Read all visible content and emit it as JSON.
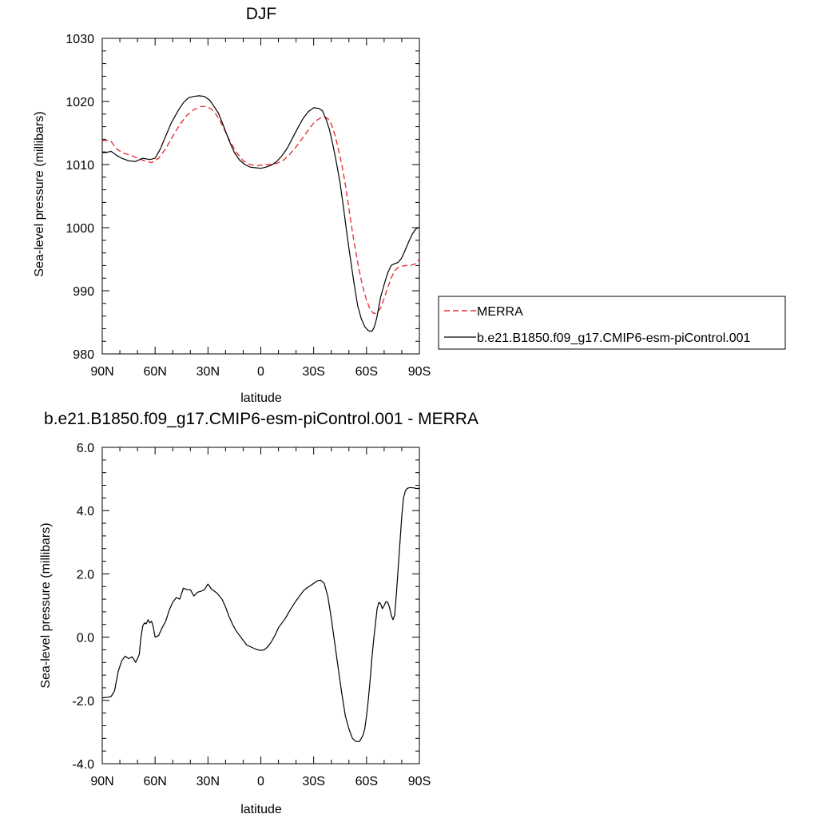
{
  "chart_data": [
    {
      "type": "line",
      "title": "DJF",
      "xlabel": "latitude",
      "ylabel": "Sea-level pressure (millibars)",
      "xlim": [
        90,
        -90
      ],
      "ylim": [
        980,
        1030
      ],
      "xticks": [
        {
          "value": 90,
          "label": "90N"
        },
        {
          "value": 60,
          "label": "60N"
        },
        {
          "value": 30,
          "label": "30N"
        },
        {
          "value": 0,
          "label": "0"
        },
        {
          "value": -30,
          "label": "30S"
        },
        {
          "value": -60,
          "label": "60S"
        },
        {
          "value": -90,
          "label": "90S"
        }
      ],
      "yticks": [
        {
          "value": 980,
          "label": "980"
        },
        {
          "value": 990,
          "label": "990"
        },
        {
          "value": 1000,
          "label": "1000"
        },
        {
          "value": 1010,
          "label": "1010"
        },
        {
          "value": 1020,
          "label": "1020"
        },
        {
          "value": 1030,
          "label": "1030"
        }
      ],
      "legend": {
        "placement": "right"
      },
      "series": [
        {
          "name": "MERRA",
          "color": "#e8333a",
          "dash": true,
          "x": [
            90,
            87,
            85,
            82,
            78,
            74,
            70,
            66,
            62,
            58,
            54,
            50,
            46,
            42,
            38,
            34,
            31,
            28,
            25,
            22,
            18,
            14,
            10,
            6,
            2,
            0,
            -4,
            -8,
            -12,
            -16,
            -20,
            -24,
            -28,
            -31,
            -34,
            -36,
            -38,
            -40,
            -42,
            -44,
            -46,
            -48,
            -50,
            -52,
            -54,
            -56,
            -58,
            -60,
            -62,
            -64,
            -66,
            -68,
            -70,
            -72,
            -74,
            -76,
            -78,
            -80,
            -82,
            -84,
            -86,
            -88,
            -90
          ],
          "y": [
            1013.8,
            1013.8,
            1013.7,
            1012.5,
            1011.8,
            1011.5,
            1011.0,
            1010.6,
            1010.3,
            1011.0,
            1012.5,
            1014.5,
            1016.3,
            1017.8,
            1018.7,
            1019.2,
            1019.2,
            1018.8,
            1017.8,
            1016.3,
            1014.0,
            1012.0,
            1010.6,
            1010.0,
            1009.8,
            1009.9,
            1010.0,
            1010.1,
            1010.5,
            1011.5,
            1012.8,
            1014.3,
            1015.9,
            1016.9,
            1017.4,
            1017.5,
            1017.3,
            1016.4,
            1014.8,
            1012.5,
            1009.9,
            1006.8,
            1003.0,
            999.3,
            996.0,
            993.0,
            990.5,
            988.5,
            987.1,
            986.4,
            986.5,
            987.3,
            988.8,
            990.5,
            992.0,
            993.2,
            993.7,
            993.9,
            994.0,
            994.0,
            994.1,
            994.3,
            995.0
          ]
        },
        {
          "name": "b.e21.B1850.f09_g17.CMIP6-esm-piControl.001",
          "color": "#000000",
          "dash": false,
          "x": [
            90,
            88,
            85,
            82,
            79,
            75,
            71,
            67,
            63,
            60,
            57,
            54,
            51,
            47,
            44,
            41,
            38,
            35,
            32,
            29,
            27,
            24,
            21,
            18,
            15,
            12,
            9,
            6,
            3,
            0,
            -3,
            -6,
            -9,
            -12,
            -15,
            -18,
            -21,
            -24,
            -27,
            -30,
            -33,
            -35,
            -37,
            -39,
            -41,
            -43,
            -45,
            -47,
            -49,
            -51,
            -53,
            -55,
            -57,
            -59,
            -61,
            -62,
            -63,
            -64,
            -65,
            -66,
            -67,
            -68,
            -70,
            -72,
            -74,
            -76,
            -78,
            -80,
            -82,
            -84,
            -86,
            -88,
            -90
          ],
          "y": [
            1011.9,
            1011.9,
            1012.1,
            1011.5,
            1011.0,
            1010.6,
            1010.5,
            1011.0,
            1010.8,
            1011.0,
            1012.5,
            1014.5,
            1016.5,
            1018.5,
            1019.8,
            1020.6,
            1020.8,
            1020.9,
            1020.8,
            1020.2,
            1019.4,
            1018.1,
            1016.0,
            1013.8,
            1011.9,
            1010.7,
            1010.0,
            1009.6,
            1009.5,
            1009.4,
            1009.6,
            1009.9,
            1010.5,
            1011.4,
            1012.6,
            1014.2,
            1015.8,
            1017.3,
            1018.4,
            1019.0,
            1018.9,
            1018.5,
            1017.2,
            1015.5,
            1013.0,
            1010.2,
            1007.0,
            1003.0,
            998.7,
            994.8,
            991.0,
            987.6,
            985.6,
            984.3,
            983.7,
            983.6,
            983.6,
            984.0,
            984.8,
            986.0,
            987.5,
            989.0,
            991.0,
            992.8,
            994.0,
            994.3,
            994.5,
            995.2,
            996.5,
            997.8,
            999.0,
            999.8,
            1000.1
          ]
        }
      ]
    },
    {
      "type": "line",
      "title": "b.e21.B1850.f09_g17.CMIP6-esm-piControl.001 - MERRA",
      "xlabel": "latitude",
      "ylabel": "Sea-level pressure (millibars)",
      "xlim": [
        90,
        -90
      ],
      "ylim": [
        -4,
        6
      ],
      "xticks": [
        {
          "value": 90,
          "label": "90N"
        },
        {
          "value": 60,
          "label": "60N"
        },
        {
          "value": 30,
          "label": "30N"
        },
        {
          "value": 0,
          "label": "0"
        },
        {
          "value": -30,
          "label": "30S"
        },
        {
          "value": -60,
          "label": "60S"
        },
        {
          "value": -90,
          "label": "90S"
        }
      ],
      "yticks": [
        {
          "value": -4,
          "label": "-4.0"
        },
        {
          "value": -2,
          "label": "-2.0"
        },
        {
          "value": 0,
          "label": "0.0"
        },
        {
          "value": 2,
          "label": "2.0"
        },
        {
          "value": 4,
          "label": "4.0"
        },
        {
          "value": 6,
          "label": "6.0"
        }
      ],
      "series": [
        {
          "color": "#000000",
          "dash": false,
          "x": [
            90,
            87,
            85,
            83,
            81,
            79,
            77,
            75,
            73,
            71,
            69,
            68,
            67,
            66,
            65,
            64,
            63,
            62,
            61,
            60,
            58,
            56,
            54,
            52,
            50,
            48,
            46,
            44,
            42,
            40,
            38,
            37,
            36,
            34,
            32,
            30,
            28,
            25,
            22,
            20,
            18,
            16,
            14,
            12,
            10,
            8,
            6,
            4,
            2,
            0,
            -2,
            -4,
            -6,
            -8,
            -10,
            -12,
            -14,
            -16,
            -18,
            -20,
            -22,
            -24,
            -26,
            -28,
            -30,
            -32,
            -34,
            -36,
            -38,
            -40,
            -42,
            -44,
            -46,
            -48,
            -50,
            -52,
            -54,
            -56,
            -58,
            -59,
            -60,
            -61,
            -62,
            -63,
            -64,
            -65,
            -66,
            -67,
            -68,
            -69,
            -70,
            -71,
            -72,
            -73,
            -74,
            -75,
            -76,
            -77,
            -78,
            -79,
            -80,
            -81,
            -82,
            -83,
            -84,
            -85,
            -86,
            -87,
            -88,
            -89,
            -90
          ],
          "y": [
            -1.92,
            -1.9,
            -1.88,
            -1.7,
            -1.1,
            -0.75,
            -0.6,
            -0.68,
            -0.62,
            -0.8,
            -0.55,
            0.0,
            0.35,
            0.45,
            0.42,
            0.55,
            0.45,
            0.5,
            0.3,
            0.0,
            0.05,
            0.3,
            0.5,
            0.85,
            1.1,
            1.25,
            1.2,
            1.55,
            1.5,
            1.5,
            1.3,
            1.35,
            1.42,
            1.45,
            1.5,
            1.68,
            1.52,
            1.4,
            1.2,
            0.95,
            0.65,
            0.4,
            0.2,
            0.05,
            -0.1,
            -0.25,
            -0.3,
            -0.35,
            -0.4,
            -0.42,
            -0.4,
            -0.3,
            -0.15,
            0.05,
            0.3,
            0.45,
            0.6,
            0.8,
            0.98,
            1.15,
            1.3,
            1.45,
            1.55,
            1.62,
            1.7,
            1.78,
            1.8,
            1.7,
            1.3,
            0.6,
            -0.2,
            -1.0,
            -1.8,
            -2.5,
            -2.9,
            -3.2,
            -3.3,
            -3.3,
            -3.1,
            -2.9,
            -2.5,
            -2.0,
            -1.4,
            -0.7,
            -0.1,
            0.4,
            0.9,
            1.1,
            1.05,
            0.9,
            1.0,
            1.12,
            1.1,
            0.95,
            0.7,
            0.55,
            0.7,
            1.4,
            2.2,
            3.0,
            3.8,
            4.4,
            4.62,
            4.7,
            4.72,
            4.73,
            4.72,
            4.72,
            4.7,
            4.7,
            4.7
          ]
        }
      ]
    }
  ]
}
